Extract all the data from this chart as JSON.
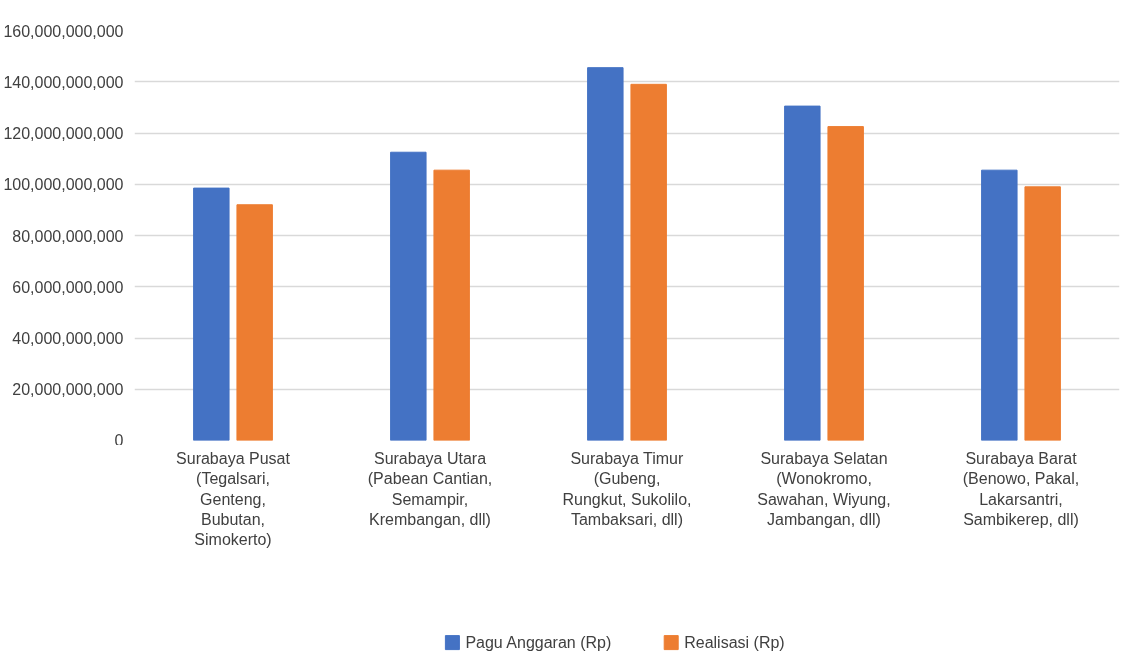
{
  "chart_data": {
    "type": "bar",
    "categories": [
      "Surabaya Pusat\n(Tegalsari,\nGenteng,\nBubutan,\nSimokerto)",
      "Surabaya Utara\n(Pabean Cantian,\nSemampir,\nKrembangan, dll)",
      "Surabaya Timur\n(Gubeng,\nRungkut, Sukolilo,\nTambaksari, dll)",
      "Surabaya Selatan\n(Wonokromo,\nSawahan, Wiyung,\nJambangan, dll)",
      "Surabaya Barat\n(Benowo, Pakal,\nLakarsantri,\nSambikerep, dll)"
    ],
    "series": [
      {
        "name": "Pagu Anggaran (Rp)",
        "color": "#4472c4",
        "values": [
          98500000000,
          112500000000,
          145500000000,
          130500000000,
          105500000000
        ]
      },
      {
        "name": "Realisasi (Rp)",
        "color": "#ed7d31",
        "values": [
          92000000000,
          105500000000,
          139000000000,
          122500000000,
          99000000000
        ]
      }
    ],
    "ylim": [
      0,
      160000000000
    ],
    "yticks": [
      0,
      {
        "value": 20000000000,
        "label": "20,000,000,000"
      },
      {
        "value": 40000000000,
        "label": "40,000,000,000"
      },
      {
        "value": 60000000000,
        "label": "60,000,000,000"
      },
      {
        "value": 80000000000,
        "label": "80,000,000,000"
      },
      {
        "value": 100000000000,
        "label": "100,000,000,000"
      },
      {
        "value": 120000000000,
        "label": "120,000,000,000"
      },
      {
        "value": 140000000000,
        "label": "140,000,000,000"
      },
      {
        "value": 160000000000,
        "label": "160,000,000,000"
      }
    ],
    "grid": "y",
    "legend": "bottom"
  }
}
